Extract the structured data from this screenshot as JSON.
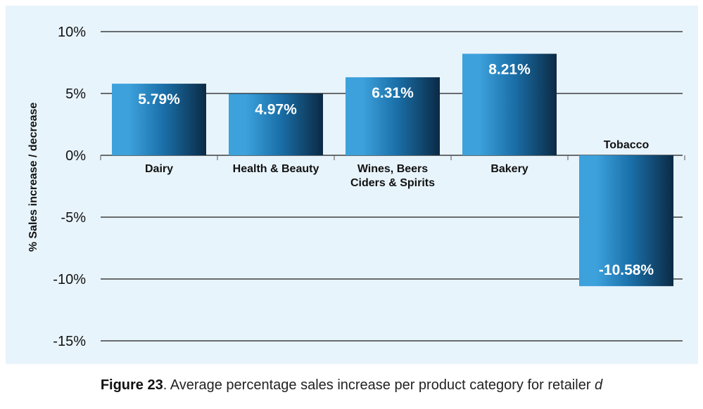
{
  "chart_data": {
    "type": "bar",
    "categories": [
      "Dairy",
      "Health & Beauty",
      "Wines, Beers\nCiders & Spirits",
      "Bakery",
      "Tobacco"
    ],
    "values": [
      5.79,
      4.97,
      6.31,
      8.21,
      -10.58
    ],
    "value_labels": [
      "5.79%",
      "4.97%",
      "6.31%",
      "8.21%",
      "-10.58%"
    ],
    "ylabel": "% Sales increase / decrease",
    "ylim": [
      -15,
      10
    ],
    "yticks": [
      10,
      5,
      0,
      -5,
      -10,
      -15
    ],
    "ytick_labels": [
      "10%",
      "5%",
      "0%",
      "-5%",
      "-10%",
      "-15%"
    ],
    "grid": true,
    "legend": "none"
  },
  "caption": {
    "bold": "Figure 23",
    "text": ". Average percentage sales increase per product category for retailer ",
    "italic": "d"
  },
  "colors": {
    "panel_bg": "#e8f4fb",
    "bar_light": "#3da1dc",
    "bar_mid": "#1a6fa8",
    "bar_dark": "#0b2a45",
    "grid": "#1a1a1a"
  }
}
